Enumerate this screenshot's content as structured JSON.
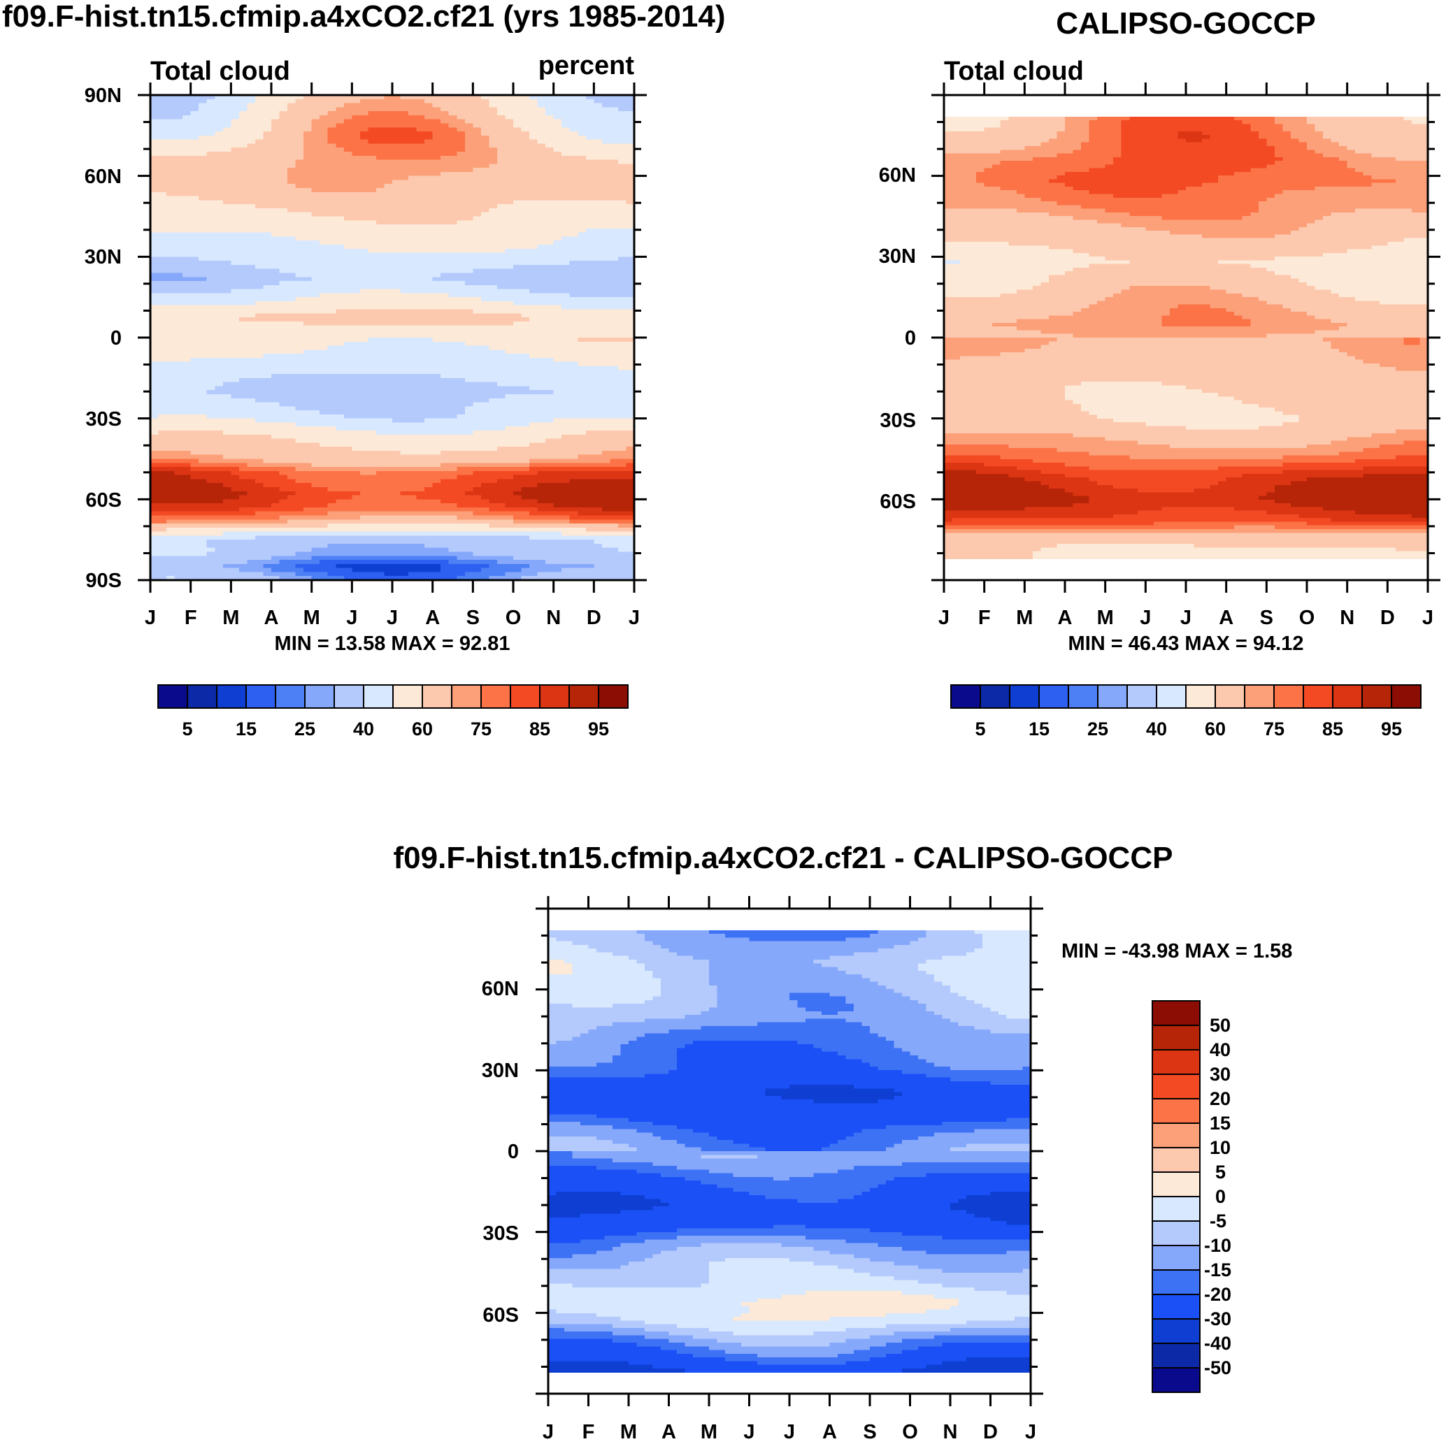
{
  "chart_data": [
    {
      "id": "model",
      "type": "contour",
      "title": "f09.F-hist.tn15.cfmip.a4xCO2.cf21 (yrs 1985-2014)",
      "left_label": "Total cloud",
      "right_label": "percent",
      "xlabels": [
        "J",
        "F",
        "M",
        "A",
        "M",
        "J",
        "J",
        "A",
        "S",
        "O",
        "N",
        "D",
        "J"
      ],
      "ylabels": [
        "90N",
        "60N",
        "30N",
        "0",
        "30S",
        "60S",
        "90S"
      ],
      "ylim": [
        -90,
        90
      ],
      "data_lat_range": [
        -90,
        90
      ],
      "minmax_label": "MIN =  13.58 MAX =  92.81",
      "min": 13.58,
      "max": 92.81,
      "colorbar_labels": [
        "5",
        "15",
        "25",
        "40",
        "60",
        "75",
        "85",
        "95"
      ],
      "colorbar_orientation": "horizontal",
      "profile": [
        [
          -90,
          30
        ],
        [
          -85,
          22
        ],
        [
          -80,
          34
        ],
        [
          -75,
          36
        ],
        [
          -68,
          72
        ],
        [
          -63,
          84
        ],
        [
          -58,
          88
        ],
        [
          -50,
          82
        ],
        [
          -45,
          68
        ],
        [
          -40,
          62
        ],
        [
          -35,
          55
        ],
        [
          -30,
          45
        ],
        [
          -20,
          37
        ],
        [
          -10,
          46
        ],
        [
          0,
          56
        ],
        [
          8,
          61
        ],
        [
          15,
          47
        ],
        [
          22,
          35
        ],
        [
          32,
          47
        ],
        [
          45,
          58
        ],
        [
          55,
          66
        ],
        [
          65,
          68
        ],
        [
          75,
          64
        ],
        [
          85,
          56
        ],
        [
          90,
          52
        ]
      ],
      "seasonal_amp": [
        [
          -90,
          10
        ],
        [
          -60,
          6
        ],
        [
          -30,
          6
        ],
        [
          -15,
          5
        ],
        [
          0,
          3
        ],
        [
          20,
          5
        ],
        [
          50,
          4
        ],
        [
          65,
          6
        ],
        [
          75,
          16
        ],
        [
          90,
          20
        ]
      ]
    },
    {
      "id": "obs",
      "type": "contour",
      "title": "CALIPSO-GOCCP",
      "left_label": "Total cloud",
      "xlabels": [
        "J",
        "F",
        "M",
        "A",
        "M",
        "J",
        "J",
        "A",
        "S",
        "O",
        "N",
        "D",
        "J"
      ],
      "ylabels": [
        "60N",
        "30N",
        "0",
        "30S",
        "60S"
      ],
      "ylim": [
        -90,
        90
      ],
      "data_lat_range": [
        -82,
        82
      ],
      "minmax_label": "MIN =  46.43 MAX =  94.12",
      "min": 46.43,
      "max": 94.12,
      "colorbar_labels": [
        "5",
        "15",
        "25",
        "40",
        "60",
        "75",
        "85",
        "95"
      ],
      "colorbar_orientation": "horizontal",
      "profile": [
        [
          -82,
          58
        ],
        [
          -75,
          62
        ],
        [
          -68,
          84
        ],
        [
          -60,
          92
        ],
        [
          -52,
          88
        ],
        [
          -45,
          78
        ],
        [
          -38,
          70
        ],
        [
          -30,
          60
        ],
        [
          -20,
          62
        ],
        [
          -10,
          66
        ],
        [
          0,
          68
        ],
        [
          5,
          72
        ],
        [
          12,
          68
        ],
        [
          20,
          62
        ],
        [
          28,
          56
        ],
        [
          38,
          66
        ],
        [
          48,
          74
        ],
        [
          58,
          78
        ],
        [
          66,
          77
        ],
        [
          74,
          73
        ],
        [
          82,
          70
        ]
      ],
      "seasonal_amp": [
        [
          -82,
          3
        ],
        [
          -30,
          4
        ],
        [
          0,
          5
        ],
        [
          10,
          6
        ],
        [
          25,
          5
        ],
        [
          50,
          4
        ],
        [
          65,
          5
        ],
        [
          75,
          10
        ],
        [
          82,
          12
        ]
      ]
    },
    {
      "id": "diff",
      "type": "contour",
      "title": "f09.F-hist.tn15.cfmip.a4xCO2.cf21 - CALIPSO-GOCCP",
      "xlabels": [
        "J",
        "F",
        "M",
        "A",
        "M",
        "J",
        "J",
        "A",
        "S",
        "O",
        "N",
        "D",
        "J"
      ],
      "ylabels": [
        "60N",
        "30N",
        "0",
        "30S",
        "60S"
      ],
      "ylim": [
        -90,
        90
      ],
      "data_lat_range": [
        -82,
        82
      ],
      "minmax_label": "MIN = -43.98 MAX =   1.58",
      "min": -43.98,
      "max": 1.58,
      "colorbar_labels": [
        "50",
        "40",
        "30",
        "20",
        "15",
        "10",
        "5",
        "0",
        "-5",
        "-10",
        "-15",
        "-20",
        "-30",
        "-40",
        "-50"
      ],
      "colorbar_orientation": "vertical",
      "profile": [
        [
          -82,
          -32
        ],
        [
          -76,
          -22
        ],
        [
          -70,
          -14
        ],
        [
          -63,
          -3
        ],
        [
          -56,
          0
        ],
        [
          -50,
          -4
        ],
        [
          -42,
          -8
        ],
        [
          -35,
          -14
        ],
        [
          -28,
          -24
        ],
        [
          -20,
          -28
        ],
        [
          -10,
          -20
        ],
        [
          -2,
          -12
        ],
        [
          8,
          -18
        ],
        [
          15,
          -26
        ],
        [
          22,
          -28
        ],
        [
          30,
          -20
        ],
        [
          40,
          -16
        ],
        [
          50,
          -10
        ],
        [
          60,
          -8
        ],
        [
          70,
          -6
        ],
        [
          78,
          -10
        ],
        [
          82,
          -12
        ]
      ],
      "seasonal_amp": [
        [
          -82,
          6
        ],
        [
          -50,
          3
        ],
        [
          -20,
          5
        ],
        [
          0,
          4
        ],
        [
          20,
          5
        ],
        [
          50,
          4
        ],
        [
          82,
          8
        ]
      ]
    }
  ],
  "palettes": {
    "sequential": [
      "#0a0a8c",
      "#0c2aa8",
      "#0e3fd2",
      "#2d60f0",
      "#4d80f5",
      "#86a8fb",
      "#b4cafc",
      "#d8e8fe",
      "#fde9d8",
      "#fcc9ae",
      "#fca079",
      "#fb7346",
      "#f34a24",
      "#dc3514",
      "#b72509",
      "#8c0d03"
    ],
    "diverging": [
      "#0a0a8c",
      "#0c2aa8",
      "#0e3fd2",
      "#1b50f7",
      "#3e72f5",
      "#86a8fb",
      "#b4cafc",
      "#d8e8fe",
      "#fde9d8",
      "#fcc9ae",
      "#fca079",
      "#fb7346",
      "#f34a24",
      "#dc3514",
      "#b72509",
      "#8c0d03"
    ]
  }
}
